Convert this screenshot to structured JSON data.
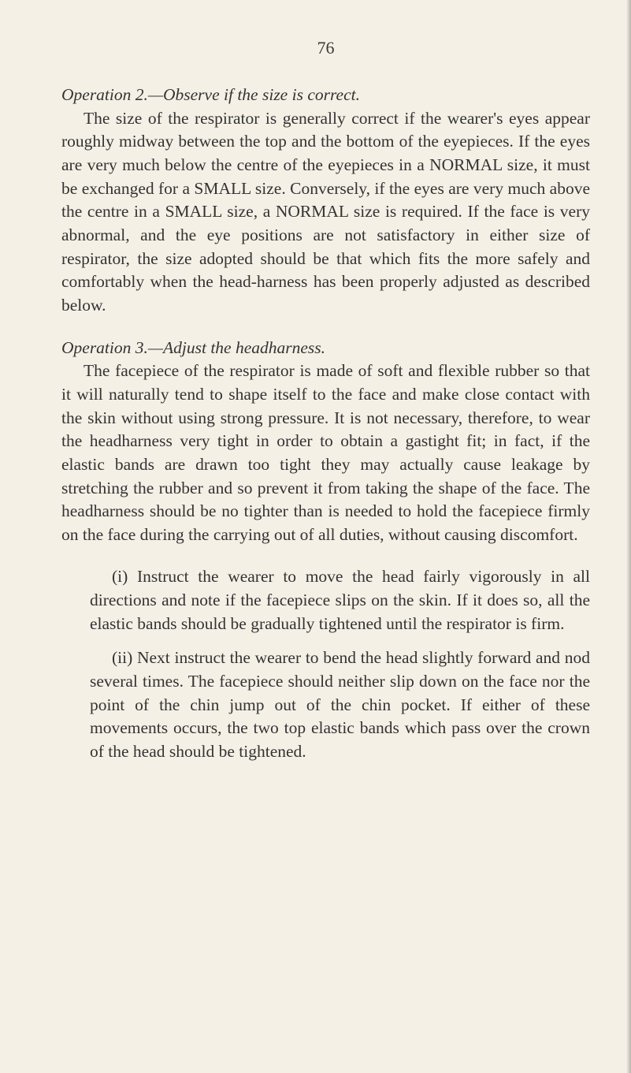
{
  "pageNumber": "76",
  "operation2": {
    "heading": "Operation 2.—Observe if the size is correct.",
    "body": "The size of the respirator is generally correct if the wearer's eyes appear roughly midway between the top and the bottom of the eyepieces. If the eyes are very much below the centre of the eyepieces in a NORMAL size, it must be exchanged for a SMALL size. Conversely, if the eyes are very much above the centre in a SMALL size, a NORMAL size is required. If the face is very abnormal, and the eye positions are not satisfactory in either size of respirator, the size adopted should be that which fits the more safely and comfortably when the head-harness has been properly adjusted as described below."
  },
  "operation3": {
    "heading": "Operation 3.—Adjust the headharness.",
    "body": "The facepiece of the respirator is made of soft and flexible rubber so that it will naturally tend to shape itself to the face and make close contact with the skin without using strong pressure. It is not necessary, therefore, to wear the headharness very tight in order to obtain a gastight fit; in fact, if the elastic bands are drawn too tight they may actually cause leakage by stretching the rubber and so prevent it from taking the shape of the face. The headharness should be no tighter than is needed to hold the facepiece firmly on the face during the carrying out of all duties, without causing discomfort."
  },
  "subItems": {
    "i": "(i) Instruct the wearer to move the head fairly vigorously in all directions and note if the facepiece slips on the skin. If it does so, all the elastic bands should be gradually tightened until the respirator is firm.",
    "ii": "(ii) Next instruct the wearer to bend the head slightly forward and nod several times. The facepiece should neither slip down on the face nor the point of the chin jump out of the chin pocket. If either of these movements occurs, the two top elastic bands which pass over the crown of the head should be tightened."
  },
  "colors": {
    "background": "#f5f0e6",
    "text": "#2a2a2a"
  },
  "typography": {
    "bodyFontSize": 21.5,
    "lineHeight": 1.38,
    "fontFamily": "Georgia, Times New Roman, serif"
  }
}
